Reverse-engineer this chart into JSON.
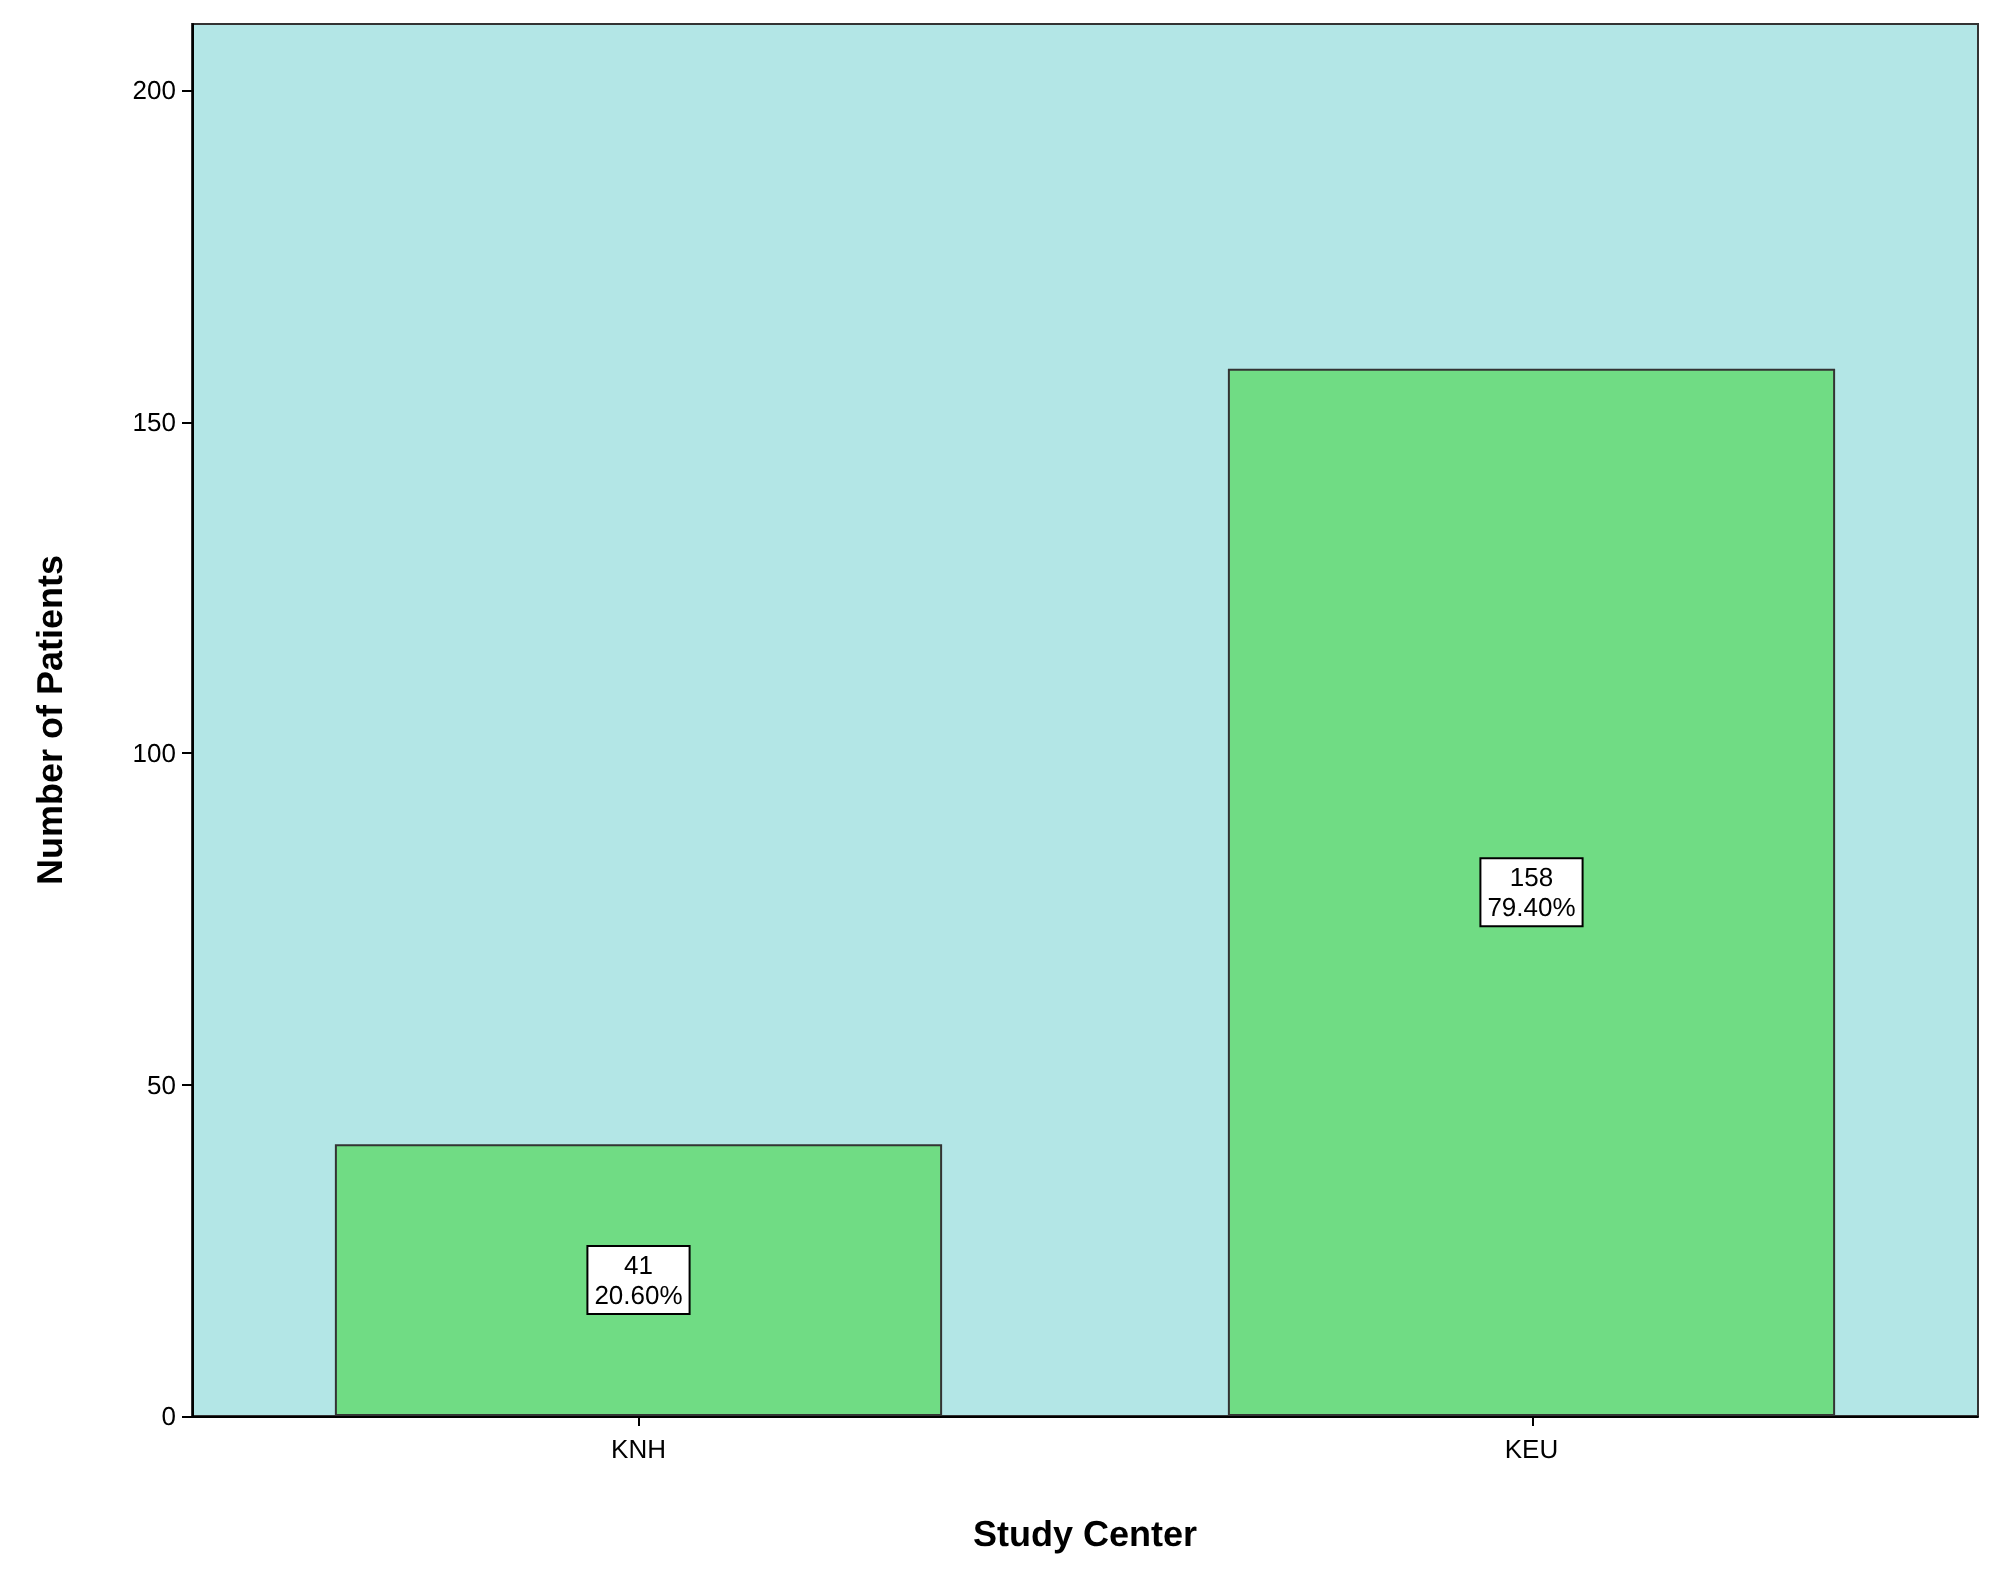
{
  "chart_data": {
    "type": "bar",
    "xlabel": "Study Center",
    "ylabel": "Number of Patients",
    "categories": [
      "KNH",
      "KEU"
    ],
    "values": [
      41,
      158
    ],
    "color": "#70dc84",
    "value_labels": [
      "41\n20.60%",
      "158\n79.40%"
    ],
    "ylim": [
      0,
      210
    ],
    "yticks": [
      0,
      50,
      100,
      150,
      200
    ],
    "grid": false
  }
}
